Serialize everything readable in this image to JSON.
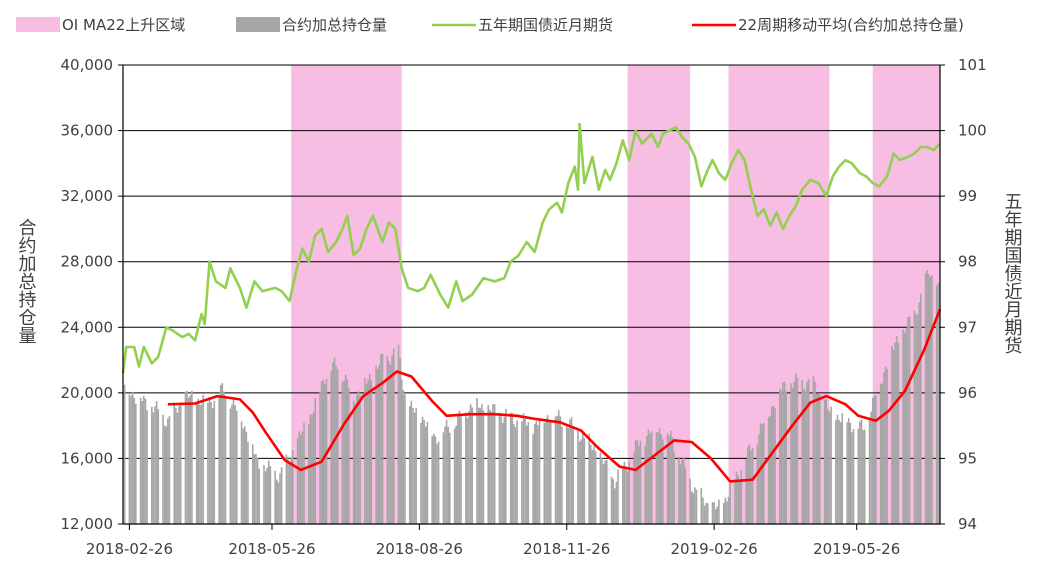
{
  "chart_data": {
    "type": "bar",
    "title": "",
    "legend": {
      "position": "top",
      "entries": [
        {
          "key": "shade",
          "label": "OI MA22上升区域",
          "color": "#f8bde3"
        },
        {
          "key": "bars",
          "label": "合约加总持仓量",
          "color": "#a6a6a6"
        },
        {
          "key": "price",
          "label": "五年期国债近月期货",
          "color": "#92d050"
        },
        {
          "key": "ma",
          "label": "22周期移动平均(合约加总持仓量)",
          "color": "#ff0000"
        }
      ]
    },
    "y_left": {
      "label": "合约加总持仓量",
      "range": [
        12000,
        40000
      ],
      "ticks": [
        12000,
        16000,
        20000,
        24000,
        28000,
        32000,
        36000,
        40000
      ],
      "tick_labels": [
        "12,000",
        "16,000",
        "20,000",
        "24,000",
        "28,000",
        "32,000",
        "36,000",
        "40,000"
      ]
    },
    "y_right": {
      "label": "五年期国债近月期货",
      "range": [
        94,
        101
      ],
      "ticks": [
        94,
        95,
        96,
        97,
        98,
        99,
        100,
        101
      ],
      "tick_labels": [
        "94",
        "95",
        "96",
        "97",
        "98",
        "99",
        "100",
        "101"
      ]
    },
    "x_axis": {
      "range": [
        "2018-02-22",
        "2019-07-17"
      ],
      "tick_dates": [
        "2018-02-26",
        "2018-05-26",
        "2018-08-26",
        "2018-11-26",
        "2019-02-26",
        "2019-05-26"
      ],
      "tick_labels": [
        "2018-02-26",
        "2018-05-26",
        "2018-08-26",
        "2018-11-26",
        "2019-02-26",
        "2019-05-26"
      ]
    },
    "shaded_regions": [
      {
        "start": "2018-06-07",
        "end": "2018-08-15"
      },
      {
        "start": "2019-01-03",
        "end": "2019-02-11"
      },
      {
        "start": "2019-03-07",
        "end": "2019-05-09"
      },
      {
        "start": "2019-06-05",
        "end": "2019-07-17"
      }
    ],
    "series": [
      {
        "key": "bars",
        "name": "合约加总持仓量",
        "axis": "left",
        "style": "bar",
        "points": [
          [
            "2018-02-23",
            20500
          ],
          [
            "2018-03-03",
            19700
          ],
          [
            "2018-03-12",
            19200
          ],
          [
            "2018-03-22",
            18300
          ],
          [
            "2018-04-02",
            19800
          ],
          [
            "2018-04-16",
            19400
          ],
          [
            "2018-04-26",
            20200
          ],
          [
            "2018-05-07",
            18500
          ],
          [
            "2018-05-17",
            15800
          ],
          [
            "2018-05-24",
            15300
          ],
          [
            "2018-05-31",
            15000
          ],
          [
            "2018-06-05",
            15900
          ],
          [
            "2018-06-12",
            17200
          ],
          [
            "2018-06-20",
            18800
          ],
          [
            "2018-06-28",
            21100
          ],
          [
            "2018-07-06",
            21800
          ],
          [
            "2018-07-16",
            19700
          ],
          [
            "2018-07-26",
            20900
          ],
          [
            "2018-08-03",
            22000
          ],
          [
            "2018-08-13",
            22500
          ],
          [
            "2018-08-18",
            19200
          ],
          [
            "2018-08-27",
            18600
          ],
          [
            "2018-09-05",
            17300
          ],
          [
            "2018-09-17",
            18200
          ],
          [
            "2018-09-28",
            19300
          ],
          [
            "2018-10-11",
            18900
          ],
          [
            "2018-10-24",
            18400
          ],
          [
            "2018-11-05",
            18000
          ],
          [
            "2018-11-16",
            18700
          ],
          [
            "2018-11-27",
            18200
          ],
          [
            "2018-12-07",
            17300
          ],
          [
            "2018-12-15",
            16400
          ],
          [
            "2018-12-26",
            14600
          ],
          [
            "2019-01-04",
            15900
          ],
          [
            "2019-01-11",
            17100
          ],
          [
            "2019-01-21",
            17900
          ],
          [
            "2019-01-30",
            17300
          ],
          [
            "2019-02-08",
            15300
          ],
          [
            "2019-02-14",
            14100
          ],
          [
            "2019-02-21",
            13300
          ],
          [
            "2019-02-28",
            12900
          ],
          [
            "2019-03-06",
            13700
          ],
          [
            "2019-03-14",
            15300
          ],
          [
            "2019-03-22",
            16800
          ],
          [
            "2019-03-31",
            18600
          ],
          [
            "2019-04-10",
            20400
          ],
          [
            "2019-04-20",
            20700
          ],
          [
            "2019-04-30",
            20500
          ],
          [
            "2019-05-09",
            18800
          ],
          [
            "2019-05-20",
            18300
          ],
          [
            "2019-05-30",
            17800
          ],
          [
            "2019-06-06",
            19600
          ],
          [
            "2019-06-13",
            21600
          ],
          [
            "2019-06-20",
            23200
          ],
          [
            "2019-06-27",
            24100
          ],
          [
            "2019-07-05",
            25700
          ],
          [
            "2019-07-10",
            27600
          ],
          [
            "2019-07-16",
            26200
          ]
        ]
      },
      {
        "key": "price",
        "name": "五年期国债近月期货",
        "axis": "right",
        "style": "line",
        "points": [
          [
            "2018-02-22",
            96.3
          ],
          [
            "2018-02-24",
            96.7
          ],
          [
            "2018-03-01",
            96.7
          ],
          [
            "2018-03-04",
            96.4
          ],
          [
            "2018-03-07",
            96.7
          ],
          [
            "2018-03-12",
            96.45
          ],
          [
            "2018-03-16",
            96.55
          ],
          [
            "2018-03-21",
            97.0
          ],
          [
            "2018-03-25",
            96.95
          ],
          [
            "2018-03-31",
            96.85
          ],
          [
            "2018-04-04",
            96.9
          ],
          [
            "2018-04-08",
            96.8
          ],
          [
            "2018-04-12",
            97.2
          ],
          [
            "2018-04-14",
            97.05
          ],
          [
            "2018-04-17",
            98.0
          ],
          [
            "2018-04-21",
            97.7
          ],
          [
            "2018-04-27",
            97.6
          ],
          [
            "2018-04-30",
            97.9
          ],
          [
            "2018-05-06",
            97.6
          ],
          [
            "2018-05-10",
            97.3
          ],
          [
            "2018-05-15",
            97.7
          ],
          [
            "2018-05-20",
            97.55
          ],
          [
            "2018-05-28",
            97.6
          ],
          [
            "2018-06-01",
            97.55
          ],
          [
            "2018-06-06",
            97.4
          ],
          [
            "2018-06-10",
            97.85
          ],
          [
            "2018-06-14",
            98.2
          ],
          [
            "2018-06-18",
            98.0
          ],
          [
            "2018-06-22",
            98.4
          ],
          [
            "2018-06-26",
            98.5
          ],
          [
            "2018-06-30",
            98.15
          ],
          [
            "2018-07-05",
            98.3
          ],
          [
            "2018-07-09",
            98.5
          ],
          [
            "2018-07-12",
            98.7
          ],
          [
            "2018-07-16",
            98.1
          ],
          [
            "2018-07-20",
            98.2
          ],
          [
            "2018-07-24",
            98.5
          ],
          [
            "2018-07-28",
            98.7
          ],
          [
            "2018-08-03",
            98.3
          ],
          [
            "2018-08-07",
            98.6
          ],
          [
            "2018-08-11",
            98.5
          ],
          [
            "2018-08-15",
            97.9
          ],
          [
            "2018-08-19",
            97.6
          ],
          [
            "2018-08-25",
            97.55
          ],
          [
            "2018-08-29",
            97.6
          ],
          [
            "2018-09-02",
            97.8
          ],
          [
            "2018-09-08",
            97.5
          ],
          [
            "2018-09-13",
            97.3
          ],
          [
            "2018-09-18",
            97.7
          ],
          [
            "2018-09-22",
            97.4
          ],
          [
            "2018-09-28",
            97.5
          ],
          [
            "2018-10-05",
            97.75
          ],
          [
            "2018-10-12",
            97.7
          ],
          [
            "2018-10-18",
            97.75
          ],
          [
            "2018-10-22",
            98.0
          ],
          [
            "2018-10-27",
            98.1
          ],
          [
            "2018-11-01",
            98.3
          ],
          [
            "2018-11-06",
            98.15
          ],
          [
            "2018-11-11",
            98.6
          ],
          [
            "2018-11-15",
            98.8
          ],
          [
            "2018-11-20",
            98.9
          ],
          [
            "2018-11-23",
            98.75
          ],
          [
            "2018-11-27",
            99.2
          ],
          [
            "2018-12-01",
            99.45
          ],
          [
            "2018-12-03",
            99.1
          ],
          [
            "2018-12-04",
            100.1
          ],
          [
            "2018-12-07",
            99.2
          ],
          [
            "2018-12-12",
            99.6
          ],
          [
            "2018-12-16",
            99.1
          ],
          [
            "2018-12-20",
            99.4
          ],
          [
            "2018-12-23",
            99.25
          ],
          [
            "2018-12-27",
            99.5
          ],
          [
            "2018-12-31",
            99.85
          ],
          [
            "2019-01-04",
            99.55
          ],
          [
            "2019-01-08",
            100.0
          ],
          [
            "2019-01-12",
            99.8
          ],
          [
            "2019-01-18",
            99.95
          ],
          [
            "2019-01-22",
            99.75
          ],
          [
            "2019-01-25",
            99.95
          ],
          [
            "2019-01-29",
            100.0
          ],
          [
            "2019-02-02",
            100.05
          ],
          [
            "2019-02-06",
            99.9
          ],
          [
            "2019-02-10",
            99.8
          ],
          [
            "2019-02-14",
            99.6
          ],
          [
            "2019-02-18",
            99.15
          ],
          [
            "2019-02-22",
            99.4
          ],
          [
            "2019-02-25",
            99.55
          ],
          [
            "2019-03-01",
            99.35
          ],
          [
            "2019-03-05",
            99.25
          ],
          [
            "2019-03-09",
            99.5
          ],
          [
            "2019-03-13",
            99.7
          ],
          [
            "2019-03-17",
            99.55
          ],
          [
            "2019-03-21",
            99.1
          ],
          [
            "2019-03-25",
            98.7
          ],
          [
            "2019-03-29",
            98.8
          ],
          [
            "2019-04-02",
            98.55
          ],
          [
            "2019-04-06",
            98.75
          ],
          [
            "2019-04-10",
            98.5
          ],
          [
            "2019-04-14",
            98.7
          ],
          [
            "2019-04-18",
            98.85
          ],
          [
            "2019-04-22",
            99.1
          ],
          [
            "2019-04-27",
            99.25
          ],
          [
            "2019-05-02",
            99.2
          ],
          [
            "2019-05-07",
            99.0
          ],
          [
            "2019-05-11",
            99.3
          ],
          [
            "2019-05-15",
            99.45
          ],
          [
            "2019-05-19",
            99.55
          ],
          [
            "2019-05-23",
            99.5
          ],
          [
            "2019-05-28",
            99.35
          ],
          [
            "2019-06-01",
            99.3
          ],
          [
            "2019-06-05",
            99.2
          ],
          [
            "2019-06-09",
            99.15
          ],
          [
            "2019-06-14",
            99.3
          ],
          [
            "2019-06-18",
            99.65
          ],
          [
            "2019-06-22",
            99.55
          ],
          [
            "2019-06-27",
            99.6
          ],
          [
            "2019-07-01",
            99.65
          ],
          [
            "2019-07-05",
            99.75
          ],
          [
            "2019-07-09",
            99.75
          ],
          [
            "2019-07-13",
            99.7
          ],
          [
            "2019-07-17",
            99.8
          ]
        ]
      },
      {
        "key": "ma",
        "name": "22周期移动平均(合约加总持仓量)",
        "axis": "left",
        "style": "line",
        "points": [
          [
            "2018-03-22",
            19300
          ],
          [
            "2018-04-08",
            19350
          ],
          [
            "2018-04-22",
            19800
          ],
          [
            "2018-05-06",
            19600
          ],
          [
            "2018-05-14",
            18800
          ],
          [
            "2018-05-22",
            17600
          ],
          [
            "2018-06-03",
            15900
          ],
          [
            "2018-06-13",
            15300
          ],
          [
            "2018-06-26",
            15800
          ],
          [
            "2018-07-10",
            18100
          ],
          [
            "2018-07-22",
            19800
          ],
          [
            "2018-08-03",
            20600
          ],
          [
            "2018-08-12",
            21300
          ],
          [
            "2018-08-21",
            21000
          ],
          [
            "2018-09-03",
            19500
          ],
          [
            "2018-09-12",
            18600
          ],
          [
            "2018-09-27",
            18700
          ],
          [
            "2018-10-12",
            18700
          ],
          [
            "2018-10-26",
            18600
          ],
          [
            "2018-11-07",
            18400
          ],
          [
            "2018-11-22",
            18200
          ],
          [
            "2018-12-05",
            17700
          ],
          [
            "2018-12-15",
            16700
          ],
          [
            "2018-12-29",
            15500
          ],
          [
            "2019-01-08",
            15300
          ],
          [
            "2019-01-20",
            16200
          ],
          [
            "2019-02-01",
            17100
          ],
          [
            "2019-02-12",
            17000
          ],
          [
            "2019-02-24",
            16000
          ],
          [
            "2019-03-08",
            14600
          ],
          [
            "2019-03-22",
            14700
          ],
          [
            "2019-04-03",
            16300
          ],
          [
            "2019-04-15",
            17900
          ],
          [
            "2019-04-27",
            19400
          ],
          [
            "2019-05-07",
            19800
          ],
          [
            "2019-05-19",
            19300
          ],
          [
            "2019-05-27",
            18600
          ],
          [
            "2019-06-07",
            18300
          ],
          [
            "2019-06-15",
            18900
          ],
          [
            "2019-06-25",
            20100
          ],
          [
            "2019-07-07",
            22600
          ],
          [
            "2019-07-17",
            25100
          ]
        ]
      }
    ]
  }
}
